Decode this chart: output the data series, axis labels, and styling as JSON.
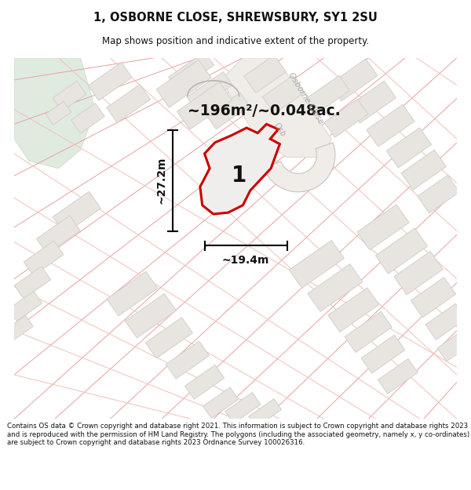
{
  "title": "1, OSBORNE CLOSE, SHREWSBURY, SY1 2SU",
  "subtitle": "Map shows position and indicative extent of the property.",
  "area_text": "~196m²/~0.048ac.",
  "dim_vertical": "~27.2m",
  "dim_horizontal": "~19.4m",
  "plot_number": "1",
  "footer": "Contains OS data © Crown copyright and database right 2021. This information is subject to Crown copyright and database rights 2023 and is reproduced with the permission of HM Land Registry. The polygons (including the associated geometry, namely x, y co-ordinates) are subject to Crown copyright and database rights 2023 Ordnance Survey 100026316.",
  "map_bg": "#f5f2ef",
  "building_fill": "#e8e4e0",
  "building_edge": "#d0ccc8",
  "plot_fill": "#f0eeec",
  "plot_edge": "#cc0000",
  "pink_line": "#e8a0a0",
  "pink_line_light": "#f0c0b8",
  "gray_line": "#c8c4c0",
  "street_label_color": "#aaa8a5",
  "green_area": "#e0ebe0",
  "road_fill": "#f0ece8",
  "text_color": "#111111"
}
